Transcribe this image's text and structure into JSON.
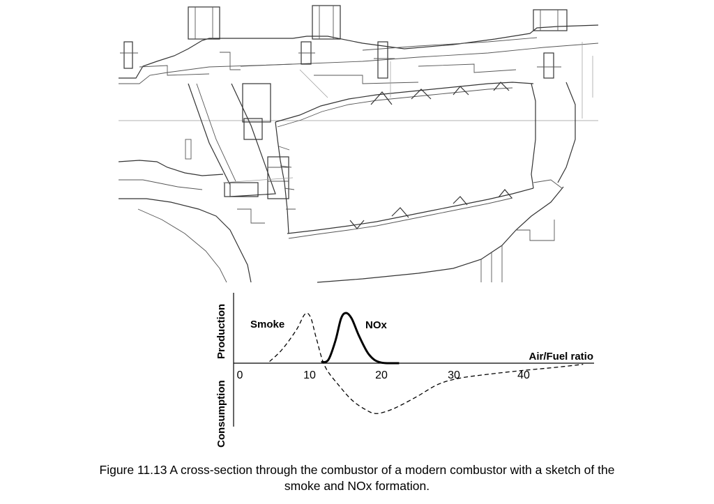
{
  "chart_data": {
    "type": "line",
    "xlabel": "Air/Fuel ratio",
    "ylabel_top": "Production",
    "ylabel_bottom": "Consumption",
    "xticks": [
      "0",
      "10",
      "20",
      "30",
      "40"
    ],
    "xlim": [
      0,
      48
    ],
    "ylim": [
      -1,
      1
    ],
    "series": [
      {
        "name": "Smoke",
        "style": "dashed",
        "x": [
          4.2,
          6,
          8,
          9.2,
          10,
          10.8,
          12,
          14,
          16,
          18,
          19,
          20,
          22,
          25,
          28,
          31,
          35,
          40,
          45,
          48.5
        ],
        "y": [
          0.03,
          0.25,
          0.6,
          0.88,
          0.82,
          0.45,
          -0.05,
          -0.4,
          -0.68,
          -0.85,
          -0.9,
          -0.89,
          -0.8,
          -0.6,
          -0.38,
          -0.27,
          -0.2,
          -0.13,
          -0.07,
          -0.02
        ]
      },
      {
        "name": "NOx",
        "style": "solid",
        "x": [
          11.5,
          12.5,
          13.5,
          14.3,
          15.0,
          15.8,
          16.8,
          18,
          19,
          20,
          21,
          22.5
        ],
        "y": [
          0.02,
          0.06,
          0.4,
          0.8,
          0.9,
          0.8,
          0.5,
          0.2,
          0.06,
          0.01,
          0,
          0
        ]
      }
    ],
    "colors": {
      "line": "#000000"
    }
  },
  "caption": {
    "line1": "Figure 11.13 A  cross-section through the combustor of a modern combustor with a sketch of the",
    "line2": "smoke and NOx formation."
  }
}
